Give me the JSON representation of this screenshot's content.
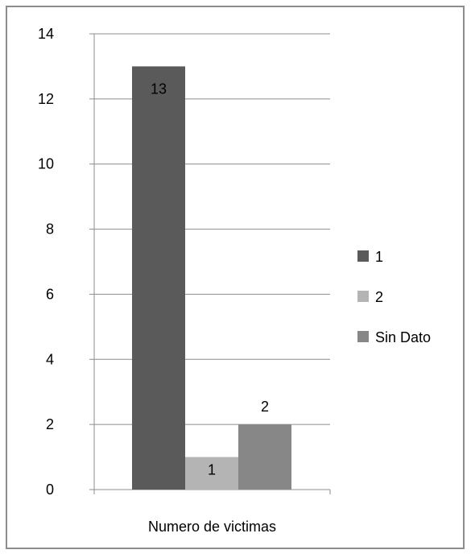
{
  "chart_data": {
    "type": "bar",
    "categories": [
      "Numero de victimas"
    ],
    "series": [
      {
        "name": "1",
        "values": [
          13
        ],
        "color": "#5a5a5a"
      },
      {
        "name": "2",
        "values": [
          1
        ],
        "color": "#b4b4b4"
      },
      {
        "name": "Sin Dato",
        "values": [
          2
        ],
        "color": "#878787"
      }
    ],
    "data_labels": [
      "13",
      "1",
      "2"
    ],
    "ylim": [
      0,
      14
    ],
    "yticks": [
      "0",
      "2",
      "4",
      "6",
      "8",
      "10",
      "12",
      "14"
    ],
    "grid": true,
    "legend_position": "right",
    "title": "",
    "xlabel": "",
    "ylabel": ""
  }
}
